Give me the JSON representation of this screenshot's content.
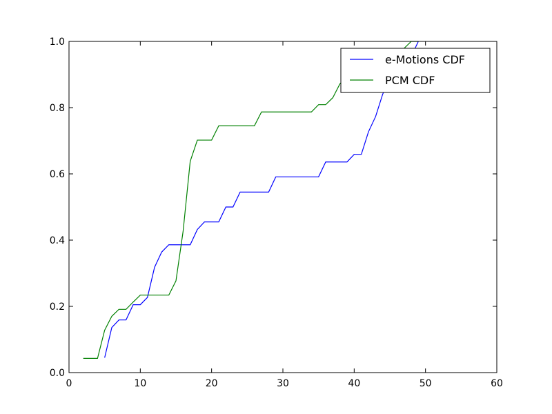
{
  "chart_data": {
    "type": "line",
    "xlim": [
      0,
      60
    ],
    "ylim": [
      0,
      1.0
    ],
    "x_ticks": [
      "0",
      "10",
      "20",
      "30",
      "40",
      "50",
      "60"
    ],
    "y_ticks": [
      "0.0",
      "0.2",
      "0.4",
      "0.6",
      "0.8",
      "1.0"
    ],
    "grid": false,
    "legend_position": "top-right",
    "series": [
      {
        "name": "e-Motions CDF",
        "color": "#0000ff",
        "points": [
          [
            5,
            0.045
          ],
          [
            6,
            0.136
          ],
          [
            7,
            0.159
          ],
          [
            8,
            0.159
          ],
          [
            9,
            0.205
          ],
          [
            10,
            0.205
          ],
          [
            11,
            0.227
          ],
          [
            12,
            0.318
          ],
          [
            13,
            0.364
          ],
          [
            14,
            0.386
          ],
          [
            15,
            0.386
          ],
          [
            16,
            0.386
          ],
          [
            17,
            0.386
          ],
          [
            18,
            0.432
          ],
          [
            19,
            0.455
          ],
          [
            20,
            0.455
          ],
          [
            21,
            0.455
          ],
          [
            22,
            0.5
          ],
          [
            23,
            0.5
          ],
          [
            24,
            0.545
          ],
          [
            25,
            0.545
          ],
          [
            26,
            0.545
          ],
          [
            27,
            0.545
          ],
          [
            28,
            0.545
          ],
          [
            29,
            0.591
          ],
          [
            30,
            0.591
          ],
          [
            31,
            0.591
          ],
          [
            32,
            0.591
          ],
          [
            33,
            0.591
          ],
          [
            34,
            0.591
          ],
          [
            35,
            0.591
          ],
          [
            36,
            0.636
          ],
          [
            37,
            0.636
          ],
          [
            38,
            0.636
          ],
          [
            39,
            0.636
          ],
          [
            40,
            0.659
          ],
          [
            41,
            0.659
          ],
          [
            42,
            0.727
          ],
          [
            43,
            0.773
          ],
          [
            44,
            0.841
          ],
          [
            45,
            0.886
          ],
          [
            46,
            0.909
          ],
          [
            47,
            0.932
          ],
          [
            48,
            0.955
          ],
          [
            49,
            1.0
          ]
        ]
      },
      {
        "name": "PCM CDF",
        "color": "#008000",
        "points": [
          [
            2,
            0.043
          ],
          [
            3,
            0.043
          ],
          [
            4,
            0.043
          ],
          [
            5,
            0.128
          ],
          [
            6,
            0.17
          ],
          [
            7,
            0.191
          ],
          [
            8,
            0.191
          ],
          [
            9,
            0.213
          ],
          [
            10,
            0.234
          ],
          [
            11,
            0.234
          ],
          [
            12,
            0.234
          ],
          [
            13,
            0.234
          ],
          [
            14,
            0.234
          ],
          [
            15,
            0.277
          ],
          [
            16,
            0.426
          ],
          [
            17,
            0.638
          ],
          [
            18,
            0.702
          ],
          [
            19,
            0.702
          ],
          [
            20,
            0.702
          ],
          [
            21,
            0.745
          ],
          [
            22,
            0.745
          ],
          [
            23,
            0.745
          ],
          [
            24,
            0.745
          ],
          [
            25,
            0.745
          ],
          [
            26,
            0.745
          ],
          [
            27,
            0.787
          ],
          [
            28,
            0.787
          ],
          [
            29,
            0.787
          ],
          [
            30,
            0.787
          ],
          [
            31,
            0.787
          ],
          [
            32,
            0.787
          ],
          [
            33,
            0.787
          ],
          [
            34,
            0.787
          ],
          [
            35,
            0.809
          ],
          [
            36,
            0.809
          ],
          [
            37,
            0.83
          ],
          [
            38,
            0.872
          ],
          [
            39,
            0.894
          ],
          [
            40,
            0.915
          ],
          [
            41,
            0.915
          ],
          [
            42,
            0.936
          ],
          [
            43,
            0.936
          ],
          [
            44,
            0.957
          ],
          [
            45,
            0.957
          ],
          [
            46,
            0.979
          ],
          [
            47,
            0.979
          ],
          [
            48,
            1.0
          ],
          [
            49,
            1.0
          ]
        ]
      }
    ]
  }
}
